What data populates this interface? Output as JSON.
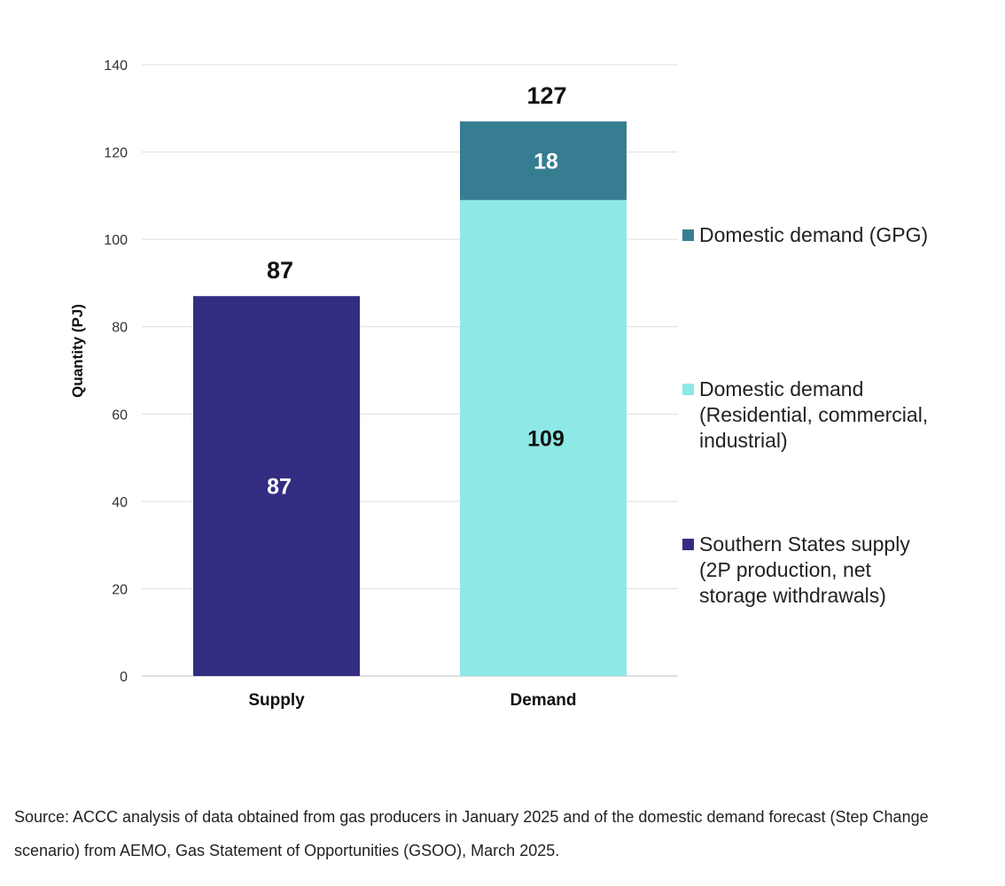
{
  "chart_data": {
    "type": "bar",
    "stacked": true,
    "categories": [
      "Supply",
      "Demand"
    ],
    "series": [
      {
        "name": "Southern States supply (2P production, net storage withdrawals)",
        "color": "#332d81",
        "label_color": "#ffffff",
        "values": [
          87,
          null
        ],
        "data_labels": [
          "87",
          ""
        ]
      },
      {
        "name": "Domestic demand (Residential, commercial, industrial)",
        "color": "#8ee8e6",
        "label_color": "#111111",
        "values": [
          null,
          109
        ],
        "data_labels": [
          "",
          "109"
        ]
      },
      {
        "name": "Domestic demand (GPG)",
        "color": "#367d92",
        "label_color": "#ffffff",
        "values": [
          null,
          18
        ],
        "data_labels": [
          "",
          "18"
        ]
      }
    ],
    "totals": [
      87,
      127
    ],
    "total_labels": [
      "87",
      "127"
    ],
    "ylabel": "Quantity (PJ)",
    "xlabel": "",
    "ylim": [
      0,
      140
    ],
    "yticks": [
      0,
      20,
      40,
      60,
      80,
      100,
      120,
      140
    ],
    "ytick_labels": [
      "0",
      "20",
      "40",
      "60",
      "80",
      "100",
      "120",
      "140"
    ],
    "grid": true,
    "legend_position": "right",
    "legend": [
      {
        "color": "#367d92",
        "lines": [
          "Domestic demand (GPG)"
        ]
      },
      {
        "color": "#8ee8e6",
        "lines": [
          "Domestic demand",
          "(Residential, commercial,",
          "industrial)"
        ]
      },
      {
        "color": "#332d81",
        "lines": [
          "Southern States supply",
          "(2P production, net",
          "storage withdrawals)"
        ]
      }
    ]
  },
  "source_note": "Source: ACCC analysis of data obtained from gas producers in January 2025 and of the domestic demand forecast (Step Change scenario) from AEMO, Gas Statement of Opportunities (GSOO), March 2025."
}
